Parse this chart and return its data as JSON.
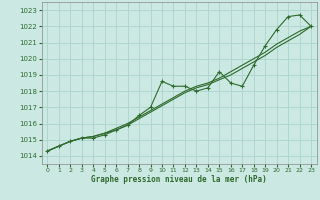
{
  "xlabel": "Graphe pression niveau de la mer (hPa)",
  "background_color": "#cce8e2",
  "grid_color": "#aad4cc",
  "line_color": "#2d6a2d",
  "ylim": [
    1013.5,
    1023.5
  ],
  "xlim": [
    -0.5,
    23.5
  ],
  "yticks": [
    1014,
    1015,
    1016,
    1017,
    1018,
    1019,
    1020,
    1021,
    1022,
    1023
  ],
  "xticks": [
    0,
    1,
    2,
    3,
    4,
    5,
    6,
    7,
    8,
    9,
    10,
    11,
    12,
    13,
    14,
    15,
    16,
    17,
    18,
    19,
    20,
    21,
    22,
    23
  ],
  "series1": [
    1014.3,
    1014.6,
    1014.9,
    1015.1,
    1015.1,
    1015.3,
    1015.6,
    1015.9,
    1016.5,
    1017.0,
    1018.6,
    1018.3,
    1018.3,
    1018.0,
    1018.2,
    1019.2,
    1018.5,
    1018.3,
    1019.6,
    1020.8,
    1021.8,
    1022.6,
    1022.7,
    1022.0
  ],
  "series2": [
    1014.3,
    1014.6,
    1014.9,
    1015.1,
    1015.2,
    1015.4,
    1015.6,
    1015.9,
    1016.3,
    1016.7,
    1017.1,
    1017.5,
    1017.9,
    1018.2,
    1018.4,
    1018.7,
    1019.0,
    1019.4,
    1019.8,
    1020.2,
    1020.7,
    1021.1,
    1021.5,
    1022.0
  ],
  "series3": [
    1014.3,
    1014.6,
    1014.9,
    1015.1,
    1015.2,
    1015.4,
    1015.7,
    1016.0,
    1016.4,
    1016.8,
    1017.2,
    1017.6,
    1018.0,
    1018.3,
    1018.5,
    1018.8,
    1019.2,
    1019.6,
    1020.0,
    1020.4,
    1020.9,
    1021.3,
    1021.7,
    1022.0
  ]
}
